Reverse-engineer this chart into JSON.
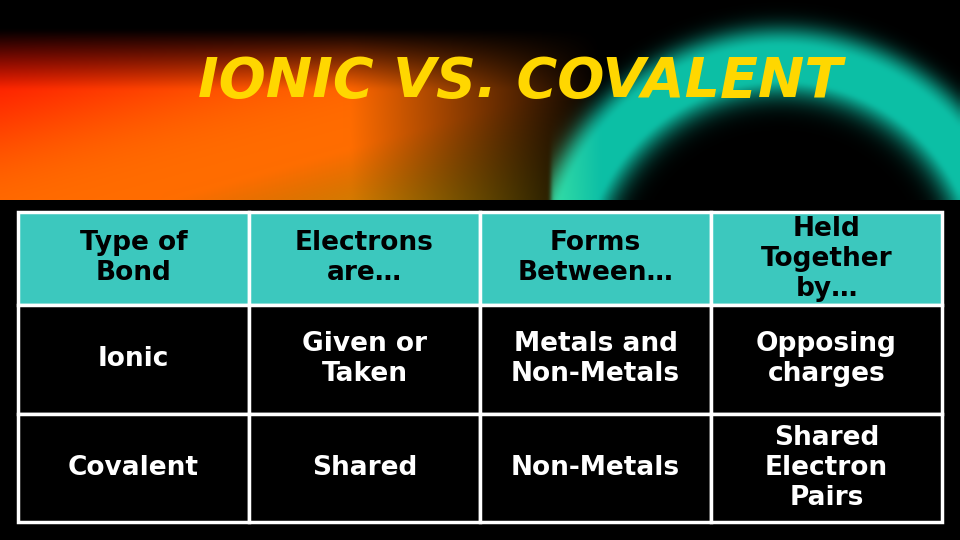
{
  "title": "IONIC VS. COVALENT",
  "title_color": "#FFD700",
  "title_fontsize": 40,
  "background_color": "#000000",
  "header_bg_color": "#3CC8BE",
  "header_text_color": "#000000",
  "row_bg_color": "#000000",
  "row_text_color": "#FFFFFF",
  "border_color": "#FFFFFF",
  "columns": [
    "Type of\nBond",
    "Electrons\nare…",
    "Forms\nBetween…",
    "Held\nTogether\nby…"
  ],
  "rows": [
    [
      "Ionic",
      "Given or\nTaken",
      "Metals and\nNon-Metals",
      "Opposing\ncharges"
    ],
    [
      "Covalent",
      "Shared",
      "Non-Metals",
      "Shared\nElectron\nPairs"
    ]
  ],
  "header_fontsize": 19,
  "row_fontsize": 19,
  "figsize": [
    9.6,
    5.4
  ],
  "dpi": 100
}
